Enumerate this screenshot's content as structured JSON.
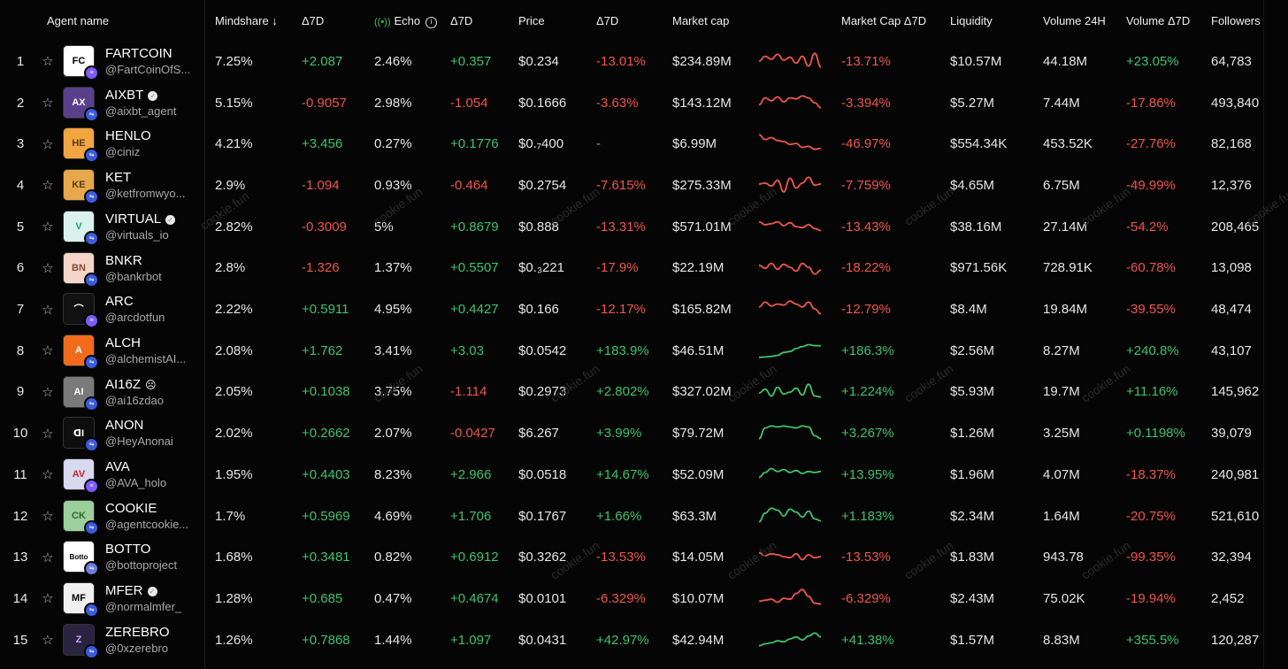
{
  "headers": {
    "agent_name": "Agent name",
    "mindshare": "Mindshare ↓",
    "mindshare_delta": "Δ7D",
    "echo": "Echo",
    "echo_delta": "Δ7D",
    "price": "Price",
    "price_delta": "Δ7D",
    "market_cap": "Market cap",
    "market_cap_delta": "Market Cap Δ7D",
    "liquidity": "Liquidity",
    "volume_24h": "Volume 24H",
    "volume_delta": "Volume Δ7D",
    "followers": "Followers"
  },
  "watermark_text": "cookie.fun",
  "colors": {
    "positive": "#3cc46b",
    "negative": "#f0564a",
    "background": "#050505"
  },
  "rows": [
    {
      "rank": "1",
      "name": "FARTCOIN",
      "handle": "@FartCoinOfS...",
      "verified": false,
      "mindshare": "7.25%",
      "mindshare_d": "+2.087",
      "echo": "2.46%",
      "echo_d": "+0.357",
      "price": "$0.234",
      "price_d": "-13.01%",
      "mcap": "$234.89M",
      "mcap_d": "-13.71%",
      "liquidity": "$10.57M",
      "volume": "44.18M",
      "volume_d": "+23.05%",
      "followers": "64,783",
      "trend": "neg",
      "spark": [
        0.55,
        0.3,
        0.45,
        0.2,
        0.5,
        0.35,
        0.65,
        0.3,
        0.8,
        0.15,
        0.85
      ]
    },
    {
      "rank": "2",
      "name": "AIXBT",
      "handle": "@aixbt_agent",
      "verified": true,
      "mindshare": "5.15%",
      "mindshare_d": "-0.9057",
      "echo": "2.98%",
      "echo_d": "-1.054",
      "price": "$0.1666",
      "price_d": "-3.63%",
      "mcap": "$143.12M",
      "mcap_d": "-3.394%",
      "liquidity": "$5.27M",
      "volume": "7.44M",
      "volume_d": "-17.86%",
      "followers": "493,840",
      "trend": "neg",
      "spark": [
        0.65,
        0.3,
        0.45,
        0.25,
        0.5,
        0.3,
        0.35,
        0.2,
        0.3,
        0.55,
        0.8
      ]
    },
    {
      "rank": "3",
      "name": "HENLO",
      "handle": "@ciniz",
      "verified": false,
      "mindshare": "4.21%",
      "mindshare_d": "+3.456",
      "echo": "0.27%",
      "echo_d": "+0.1776",
      "price": "$0.₇400",
      "price_d": "-",
      "mcap": "$6.99M",
      "mcap_d": "-46.97%",
      "liquidity": "$554.34K",
      "volume": "453.52K",
      "volume_d": "-27.76%",
      "followers": "82,168",
      "trend": "neg",
      "spark": [
        0.1,
        0.35,
        0.25,
        0.4,
        0.45,
        0.6,
        0.55,
        0.75,
        0.7,
        0.85,
        0.8
      ]
    },
    {
      "rank": "4",
      "name": "KET",
      "handle": "@ketfromwyo...",
      "verified": false,
      "mindshare": "2.9%",
      "mindshare_d": "-1.094",
      "echo": "0.93%",
      "echo_d": "-0.464",
      "price": "$0.2754",
      "price_d": "-7.615%",
      "mcap": "$275.33M",
      "mcap_d": "-7.759%",
      "liquidity": "$4.65M",
      "volume": "6.75M",
      "volume_d": "-49.99%",
      "followers": "12,376",
      "trend": "neg",
      "spark": [
        0.5,
        0.45,
        0.6,
        0.3,
        0.9,
        0.2,
        0.7,
        0.45,
        0.15,
        0.55,
        0.5
      ]
    },
    {
      "rank": "5",
      "name": "VIRTUAL",
      "handle": "@virtuals_io",
      "verified": true,
      "mindshare": "2.82%",
      "mindshare_d": "-0.3009",
      "echo": "5%",
      "echo_d": "+0.8679",
      "price": "$0.888",
      "price_d": "-13.31%",
      "mcap": "$571.01M",
      "mcap_d": "-13.43%",
      "liquidity": "$38.16M",
      "volume": "27.14M",
      "volume_d": "-54.2%",
      "followers": "208,465",
      "trend": "neg",
      "spark": [
        0.3,
        0.45,
        0.4,
        0.3,
        0.5,
        0.35,
        0.55,
        0.6,
        0.45,
        0.65,
        0.75
      ]
    },
    {
      "rank": "6",
      "name": "BNKR",
      "handle": "@bankrbot",
      "verified": false,
      "mindshare": "2.8%",
      "mindshare_d": "-1.326",
      "echo": "1.37%",
      "echo_d": "+0.5507",
      "price": "$0.₃221",
      "price_d": "-17.9%",
      "mcap": "$22.19M",
      "mcap_d": "-18.22%",
      "liquidity": "$971.56K",
      "volume": "728.91K",
      "volume_d": "-60.78%",
      "followers": "13,098",
      "trend": "neg",
      "spark": [
        0.4,
        0.55,
        0.3,
        0.6,
        0.35,
        0.5,
        0.7,
        0.3,
        0.5,
        0.85,
        0.65
      ]
    },
    {
      "rank": "7",
      "name": "ARC",
      "handle": "@arcdotfun",
      "verified": false,
      "mindshare": "2.22%",
      "mindshare_d": "+0.5911",
      "echo": "4.95%",
      "echo_d": "+0.4427",
      "price": "$0.166",
      "price_d": "-12.17%",
      "mcap": "$165.82M",
      "mcap_d": "-12.79%",
      "liquidity": "$8.4M",
      "volume": "19.84M",
      "volume_d": "-39.55%",
      "followers": "48,474",
      "trend": "neg",
      "spark": [
        0.45,
        0.2,
        0.4,
        0.3,
        0.35,
        0.15,
        0.3,
        0.45,
        0.2,
        0.55,
        0.8
      ]
    },
    {
      "rank": "8",
      "name": "ALCH",
      "handle": "@alchemistAI...",
      "verified": false,
      "mindshare": "2.08%",
      "mindshare_d": "+1.762",
      "echo": "3.41%",
      "echo_d": "+3.03",
      "price": "$0.0542",
      "price_d": "+183.9%",
      "mcap": "$46.51M",
      "mcap_d": "+186.3%",
      "liquidity": "$2.56M",
      "volume": "8.27M",
      "volume_d": "+240.8%",
      "followers": "43,107",
      "trend": "pos",
      "spark": [
        0.9,
        0.88,
        0.85,
        0.8,
        0.65,
        0.6,
        0.45,
        0.35,
        0.25,
        0.3,
        0.3
      ]
    },
    {
      "rank": "9",
      "name": "AI16Z",
      "handle": "@ai16zdao",
      "verified": false,
      "mindshare": "2.05%",
      "mindshare_d": "+0.1038",
      "echo": "3.75%",
      "echo_d": "-1.114",
      "price": "$0.2973",
      "price_d": "+2.802%",
      "mcap": "$327.02M",
      "mcap_d": "+1.224%",
      "liquidity": "$5.93M",
      "volume": "19.7M",
      "volume_d": "+11.16%",
      "followers": "145,962",
      "trend": "pos",
      "spark": [
        0.6,
        0.4,
        0.75,
        0.3,
        0.65,
        0.55,
        0.35,
        0.7,
        0.15,
        0.75,
        0.8
      ]
    },
    {
      "rank": "10",
      "name": "ANON",
      "handle": "@HeyAnonai",
      "verified": false,
      "mindshare": "2.02%",
      "mindshare_d": "+0.2662",
      "echo": "2.07%",
      "echo_d": "-0.0427",
      "price": "$6.267",
      "price_d": "+3.99%",
      "mcap": "$79.72M",
      "mcap_d": "+3.267%",
      "liquidity": "$1.26M",
      "volume": "3.25M",
      "volume_d": "+0.1198%",
      "followers": "39,079",
      "trend": "pos",
      "spark": [
        0.85,
        0.3,
        0.2,
        0.25,
        0.2,
        0.25,
        0.3,
        0.2,
        0.25,
        0.7,
        0.85
      ]
    },
    {
      "rank": "11",
      "name": "AVA",
      "handle": "@AVA_holo",
      "verified": false,
      "mindshare": "1.95%",
      "mindshare_d": "+0.4403",
      "echo": "8.23%",
      "echo_d": "+2.966",
      "price": "$0.0518",
      "price_d": "+14.67%",
      "mcap": "$52.09M",
      "mcap_d": "+13.95%",
      "liquidity": "$1.96M",
      "volume": "4.07M",
      "volume_d": "-18.37%",
      "followers": "240,981",
      "trend": "pos",
      "spark": [
        0.7,
        0.45,
        0.25,
        0.4,
        0.3,
        0.45,
        0.35,
        0.5,
        0.4,
        0.45,
        0.4
      ]
    },
    {
      "rank": "12",
      "name": "COOKIE",
      "handle": "@agentcookie...",
      "verified": false,
      "mindshare": "1.7%",
      "mindshare_d": "+0.5969",
      "echo": "4.69%",
      "echo_d": "+1.706",
      "price": "$0.1767",
      "price_d": "+1.66%",
      "mcap": "$63.3M",
      "mcap_d": "+1.183%",
      "liquidity": "$2.34M",
      "volume": "1.64M",
      "volume_d": "-20.75%",
      "followers": "521,610",
      "trend": "pos",
      "spark": [
        0.85,
        0.4,
        0.15,
        0.25,
        0.55,
        0.2,
        0.35,
        0.6,
        0.3,
        0.7,
        0.8
      ]
    },
    {
      "rank": "13",
      "name": "BOTTO",
      "handle": "@bottoproject",
      "verified": false,
      "mindshare": "1.68%",
      "mindshare_d": "+0.3481",
      "echo": "0.82%",
      "echo_d": "+0.6912",
      "price": "$0.3262",
      "price_d": "-13.53%",
      "mcap": "$14.05M",
      "mcap_d": "-13.53%",
      "liquidity": "$1.83M",
      "volume": "943.78",
      "volume_d": "-99.35%",
      "followers": "32,394",
      "trend": "neg",
      "spark": [
        0.35,
        0.5,
        0.4,
        0.45,
        0.55,
        0.6,
        0.4,
        0.7,
        0.45,
        0.6,
        0.55
      ]
    },
    {
      "rank": "14",
      "name": "MFER",
      "handle": "@normalmfer_",
      "verified": true,
      "mindshare": "1.28%",
      "mindshare_d": "+0.685",
      "echo": "0.47%",
      "echo_d": "+0.4674",
      "price": "$0.0101",
      "price_d": "-6.329%",
      "mcap": "$10.07M",
      "mcap_d": "-6.329%",
      "liquidity": "$2.43M",
      "volume": "75.02K",
      "volume_d": "-19.94%",
      "followers": "2,452",
      "trend": "neg",
      "spark": [
        0.7,
        0.65,
        0.6,
        0.75,
        0.55,
        0.6,
        0.3,
        0.1,
        0.45,
        0.8,
        0.85
      ]
    },
    {
      "rank": "15",
      "name": "ZEREBRO",
      "handle": "@0xzerebro",
      "verified": false,
      "mindshare": "1.26%",
      "mindshare_d": "+0.7868",
      "echo": "1.44%",
      "echo_d": "+1.097",
      "price": "$0.0431",
      "price_d": "+42.97%",
      "mcap": "$42.94M",
      "mcap_d": "+41.38%",
      "liquidity": "$1.57M",
      "volume": "8.83M",
      "volume_d": "+355.5%",
      "followers": "120,287",
      "trend": "pos",
      "spark": [
        0.85,
        0.75,
        0.7,
        0.6,
        0.65,
        0.5,
        0.4,
        0.55,
        0.35,
        0.2,
        0.4
      ]
    }
  ]
}
